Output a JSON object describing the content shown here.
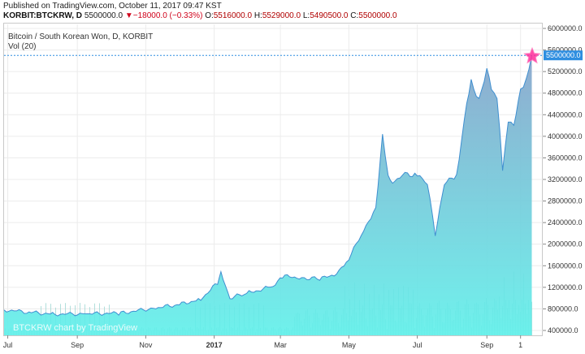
{
  "header": {
    "published": "Published on TradingView.com, October 11, 2017 09:47 KST",
    "symbol": "KORBIT:BTCKRW, D",
    "last": "5500000.0",
    "change": "−18000.0 (−0.33%)",
    "o_label": "O:",
    "o_value": "5516000.0",
    "h_label": "H:",
    "h_value": "5529000.0",
    "l_label": "L:",
    "l_value": "5490500.0",
    "c_label": "C:",
    "c_value": "5500000.0"
  },
  "legend": {
    "title": "Bitcoin / South Korean Won, D, KORBIT",
    "volume": "Vol (20)"
  },
  "watermark": "BTCKRW chart by TradingView",
  "colors": {
    "line": "#3f8fd0",
    "area_top": "#8aa6cc",
    "area_bottom": "#5ff0ea",
    "volume": "#9fd7d3",
    "price_label_bg": "#2e8ee0",
    "star": "#ff2d9a"
  },
  "chart_data": {
    "type": "area",
    "title": "Bitcoin / South Korean Won, D, KORBIT",
    "price_axis_labels": [
      "6000000.0",
      "5600000.0",
      "5200000.0",
      "4800000.0",
      "4400000.0",
      "4000000.0",
      "3600000.0",
      "3200000.0",
      "2800000.0",
      "2400000.0",
      "2000000.0",
      "1600000.0",
      "1200000.0",
      "800000.0",
      "400000.0"
    ],
    "time_axis_labels": [
      "Jul",
      "Sep",
      "Nov",
      "2017",
      "Mar",
      "May",
      "Jul",
      "Sep",
      "1"
    ],
    "current_price_label": "5500000.0",
    "ylim": [
      340000,
      6050000
    ],
    "series": [
      {
        "x": [
          "2016-07-01",
          "2016-07-20",
          "2016-08-10",
          "2016-09-10",
          "2016-10-10",
          "2016-11-10",
          "2016-12-01",
          "2016-12-20",
          "2017-01-04",
          "2017-01-07",
          "2017-01-15",
          "2017-02-01",
          "2017-02-20",
          "2017-03-05",
          "2017-03-20",
          "2017-04-05",
          "2017-04-20",
          "2017-05-01",
          "2017-05-12",
          "2017-05-25",
          "2017-05-31",
          "2017-06-05",
          "2017-06-11",
          "2017-06-20",
          "2017-07-01",
          "2017-07-10",
          "2017-07-17",
          "2017-07-25",
          "2017-08-05",
          "2017-08-14",
          "2017-08-18",
          "2017-08-25",
          "2017-09-01",
          "2017-09-05",
          "2017-09-10",
          "2017-09-15",
          "2017-09-20",
          "2017-09-25",
          "2017-10-01",
          "2017-10-06",
          "2017-10-11"
        ],
        "values": [
          780000,
          740000,
          700000,
          710000,
          720000,
          820000,
          880000,
          980000,
          1280000,
          1480000,
          1000000,
          1100000,
          1200000,
          1400000,
          1380000,
          1350000,
          1450000,
          1750000,
          2150000,
          2700000,
          4000000,
          3250000,
          3150000,
          3300000,
          3300000,
          3100000,
          2200000,
          3100000,
          3300000,
          4600000,
          5000000,
          4700000,
          5200000,
          4900000,
          4700000,
          3400000,
          4300000,
          4200000,
          4900000,
          5000000,
          5500000
        ]
      }
    ],
    "grid": true,
    "legend": "top-left"
  }
}
